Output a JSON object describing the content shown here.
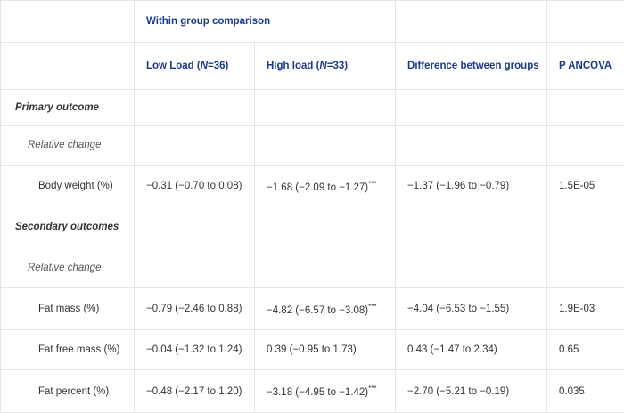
{
  "header": {
    "title": "Within group comparison",
    "columns": [
      {
        "pre": "Low Load (",
        "italic": "N",
        "post": "=36)"
      },
      {
        "pre": "High load (",
        "italic": "N",
        "post": "=33)"
      },
      {
        "text": "Difference between groups"
      },
      {
        "text": "P ANCOVA"
      }
    ]
  },
  "sections": [
    {
      "title": "Primary outcome",
      "subsections": [
        {
          "title": "Relative change",
          "rows": [
            {
              "label": "Body weight (%)",
              "cells": [
                {
                  "text": "−0.31 (−0.70 to 0.08)"
                },
                {
                  "text": "−1.68 (−2.09 to −1.27)",
                  "sup": "***"
                },
                {
                  "text": "−1.37 (−1.96 to −0.79)"
                },
                {
                  "text": "1.5E-05"
                }
              ]
            }
          ]
        }
      ]
    },
    {
      "title": "Secondary outcomes",
      "subsections": [
        {
          "title": "Relative change",
          "rows": [
            {
              "label": "Fat mass (%)",
              "cells": [
                {
                  "text": "−0.79 (−2.46 to 0.88)"
                },
                {
                  "text": "−4.82 (−6.57 to −3.08)",
                  "sup": "***"
                },
                {
                  "text": "−4.04 (−6.53 to −1.55)"
                },
                {
                  "text": "1.9E-03"
                }
              ]
            },
            {
              "label": "Fat free mass (%)",
              "cells": [
                {
                  "text": "−0.04 (−1.32 to 1.24)"
                },
                {
                  "text": "0.39 (−0.95 to 1.73)"
                },
                {
                  "text": "0.43 (−1.47 to 2.34)"
                },
                {
                  "text": "0.65"
                }
              ]
            },
            {
              "label": "Fat percent (%)",
              "cells": [
                {
                  "text": "−0.48 (−2.17 to 1.20)"
                },
                {
                  "text": "−3.18 (−4.95 to −1.42)",
                  "sup": "***"
                },
                {
                  "text": "−2.70 (−5.21 to −0.19)"
                },
                {
                  "text": "0.035"
                }
              ]
            }
          ]
        }
      ]
    }
  ]
}
